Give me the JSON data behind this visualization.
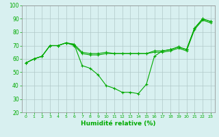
{
  "title": "",
  "xlabel": "Humidité relative (%)",
  "ylabel": "",
  "background_color": "#d8f0f0",
  "grid_color": "#b0c8c8",
  "line_color": "#00aa00",
  "xlim": [
    -0.5,
    23.5
  ],
  "ylim": [
    20,
    100
  ],
  "yticks": [
    20,
    30,
    40,
    50,
    60,
    70,
    80,
    90,
    100
  ],
  "xticks": [
    0,
    1,
    2,
    3,
    4,
    5,
    6,
    7,
    8,
    9,
    10,
    11,
    12,
    13,
    14,
    15,
    16,
    17,
    18,
    19,
    20,
    21,
    22,
    23
  ],
  "line1_x": [
    0,
    1,
    2,
    3,
    4,
    5,
    6,
    7,
    8,
    9,
    10,
    11,
    12,
    13,
    14,
    15,
    16,
    17,
    18,
    19,
    20,
    21,
    22,
    23
  ],
  "line1_y": [
    57,
    60,
    62,
    70,
    70,
    72,
    71,
    65,
    64,
    64,
    65,
    64,
    64,
    64,
    64,
    64,
    66,
    66,
    67,
    69,
    67,
    83,
    90,
    88
  ],
  "line2_x": [
    0,
    1,
    2,
    3,
    4,
    5,
    6,
    7,
    8,
    9,
    10,
    11,
    12,
    13,
    14,
    15,
    16,
    17,
    18,
    19,
    20,
    21,
    22,
    23
  ],
  "line2_y": [
    57,
    60,
    62,
    70,
    70,
    72,
    70,
    64,
    63,
    63,
    64,
    64,
    64,
    64,
    64,
    64,
    65,
    65,
    66,
    68,
    66,
    82,
    89,
    87
  ],
  "line3_x": [
    0,
    1,
    2,
    3,
    4,
    5,
    6,
    7,
    8,
    9,
    10,
    11,
    12,
    13,
    14,
    15,
    16,
    17,
    18,
    19,
    20,
    21,
    22,
    23
  ],
  "line3_y": [
    57,
    60,
    62,
    70,
    70,
    72,
    71,
    55,
    53,
    48,
    40,
    38,
    35,
    35,
    34,
    41,
    62,
    66,
    67,
    69,
    67,
    83,
    90,
    88
  ]
}
